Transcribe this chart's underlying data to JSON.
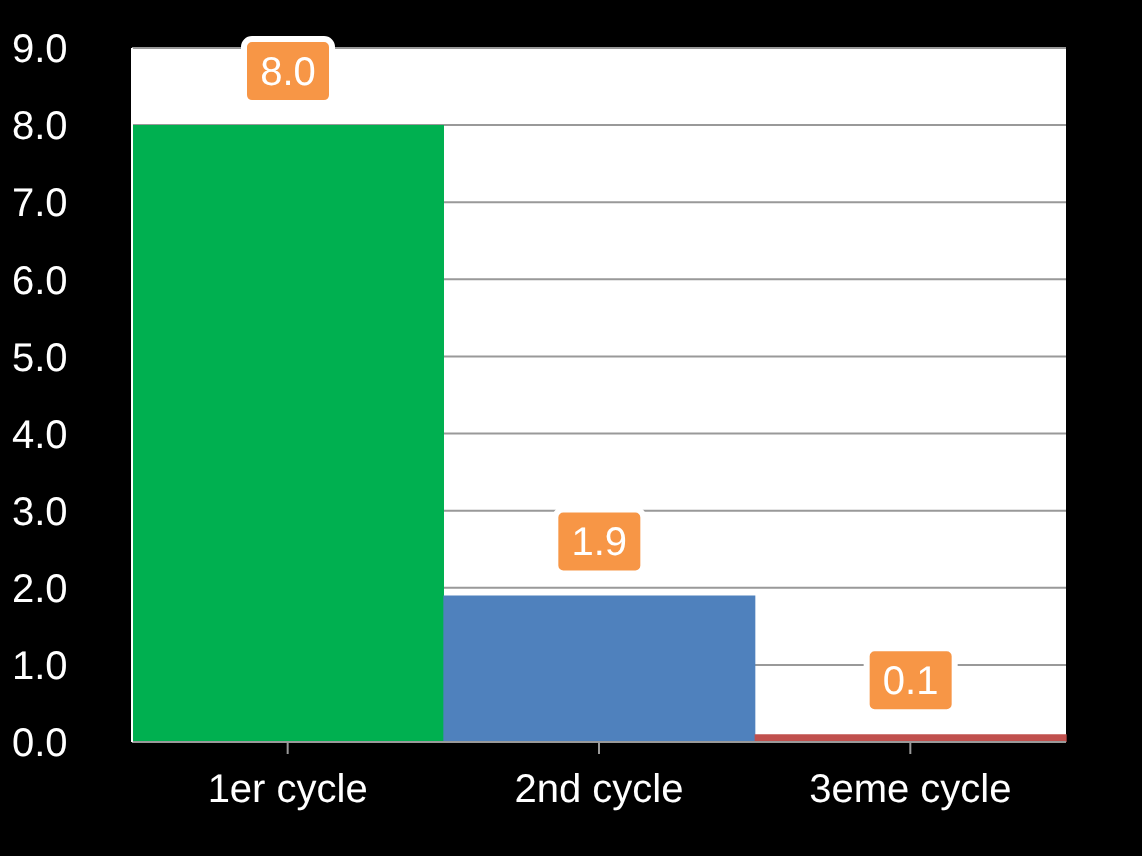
{
  "chart_data": {
    "type": "bar",
    "categories": [
      "1er cycle",
      "2nd cycle",
      "3eme cycle"
    ],
    "values": [
      8.0,
      1.9,
      0.1
    ],
    "colors": [
      "#00b050",
      "#4f81bd",
      "#c0504d"
    ],
    "value_labels": [
      "8.0",
      "1.9",
      "0.1"
    ],
    "ylim": [
      0,
      9
    ],
    "yticks": [
      {
        "value": 0,
        "label": "0.0"
      },
      {
        "value": 1,
        "label": "1.0"
      },
      {
        "value": 2,
        "label": "2.0"
      },
      {
        "value": 3,
        "label": "3.0"
      },
      {
        "value": 4,
        "label": "4.0"
      },
      {
        "value": 5,
        "label": "5.0"
      },
      {
        "value": 6,
        "label": "6.0"
      },
      {
        "value": 7,
        "label": "7.0"
      },
      {
        "value": 8,
        "label": "8.0"
      },
      {
        "value": 9,
        "label": "9.0"
      }
    ],
    "grid": "y"
  }
}
